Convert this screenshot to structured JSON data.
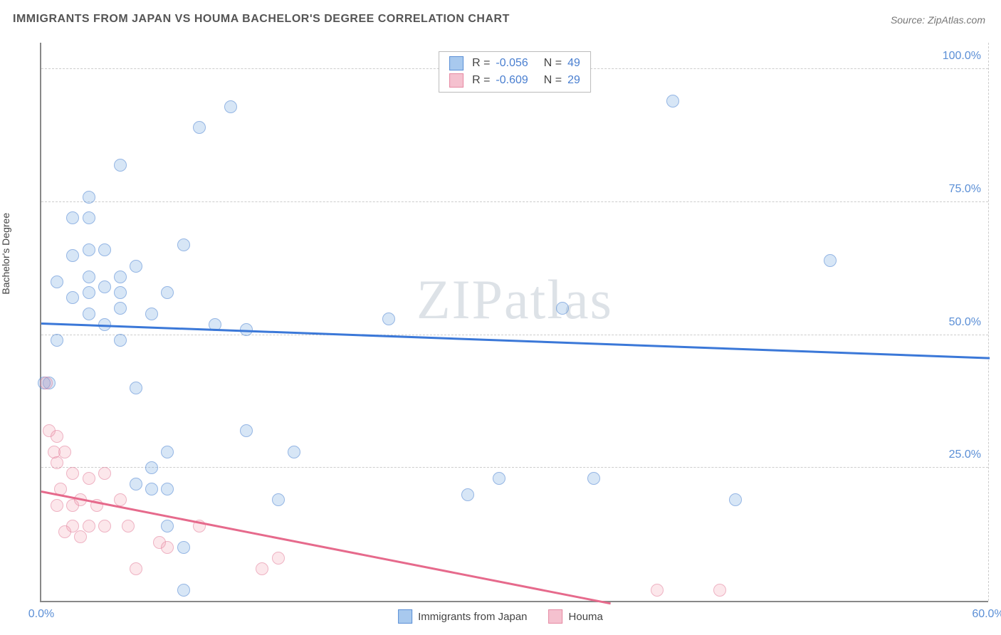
{
  "title": "IMMIGRANTS FROM JAPAN VS HOUMA BACHELOR'S DEGREE CORRELATION CHART",
  "source": "Source: ZipAtlas.com",
  "y_axis_label": "Bachelor's Degree",
  "watermark": "ZIPatlas",
  "chart": {
    "type": "scatter",
    "xlim": [
      0,
      60
    ],
    "ylim": [
      0,
      105
    ],
    "x_ticks": [
      {
        "v": 0,
        "l": "0.0%"
      },
      {
        "v": 60,
        "l": "60.0%"
      }
    ],
    "y_ticks": [
      {
        "v": 25,
        "l": "25.0%"
      },
      {
        "v": 50,
        "l": "50.0%"
      },
      {
        "v": 75,
        "l": "75.0%"
      },
      {
        "v": 100,
        "l": "100.0%"
      }
    ],
    "background_color": "#ffffff",
    "grid_color": "#cccccc"
  },
  "series": [
    {
      "name": "Immigrants from Japan",
      "color_fill": "#a8c9ee",
      "color_stroke": "#5b8fd6",
      "cls": "blue",
      "R": "-0.056",
      "N": "49",
      "trend": {
        "x1": 0,
        "y1": 52.5,
        "x2": 60,
        "y2": 46,
        "color": "#3b78d8"
      },
      "points": [
        {
          "x": 2,
          "y": 72
        },
        {
          "x": 3,
          "y": 72
        },
        {
          "x": 3,
          "y": 76
        },
        {
          "x": 5,
          "y": 82
        },
        {
          "x": 2,
          "y": 65
        },
        {
          "x": 3,
          "y": 66
        },
        {
          "x": 4,
          "y": 66
        },
        {
          "x": 5,
          "y": 61
        },
        {
          "x": 6,
          "y": 63
        },
        {
          "x": 3,
          "y": 58
        },
        {
          "x": 4,
          "y": 59
        },
        {
          "x": 5,
          "y": 58
        },
        {
          "x": 1,
          "y": 60
        },
        {
          "x": 2,
          "y": 57
        },
        {
          "x": 3,
          "y": 54
        },
        {
          "x": 5,
          "y": 55
        },
        {
          "x": 4,
          "y": 52
        },
        {
          "x": 1,
          "y": 49
        },
        {
          "x": 7,
          "y": 54
        },
        {
          "x": 8,
          "y": 58
        },
        {
          "x": 6,
          "y": 40
        },
        {
          "x": 0.5,
          "y": 41
        },
        {
          "x": 0.2,
          "y": 41
        },
        {
          "x": 9,
          "y": 67
        },
        {
          "x": 10,
          "y": 89
        },
        {
          "x": 12,
          "y": 93
        },
        {
          "x": 11,
          "y": 52
        },
        {
          "x": 13,
          "y": 51
        },
        {
          "x": 8,
          "y": 28
        },
        {
          "x": 7,
          "y": 25
        },
        {
          "x": 7,
          "y": 21
        },
        {
          "x": 8,
          "y": 21
        },
        {
          "x": 6,
          "y": 22
        },
        {
          "x": 8,
          "y": 14
        },
        {
          "x": 9,
          "y": 10
        },
        {
          "x": 9,
          "y": 2
        },
        {
          "x": 13,
          "y": 32
        },
        {
          "x": 15,
          "y": 19
        },
        {
          "x": 16,
          "y": 28
        },
        {
          "x": 22,
          "y": 53
        },
        {
          "x": 27,
          "y": 20
        },
        {
          "x": 29,
          "y": 23
        },
        {
          "x": 33,
          "y": 55
        },
        {
          "x": 35,
          "y": 23
        },
        {
          "x": 40,
          "y": 94
        },
        {
          "x": 44,
          "y": 19
        },
        {
          "x": 50,
          "y": 64
        },
        {
          "x": 5,
          "y": 49
        },
        {
          "x": 3,
          "y": 61
        }
      ]
    },
    {
      "name": "Houma",
      "color_fill": "#f5c1cf",
      "color_stroke": "#e68aa3",
      "cls": "pink",
      "R": "-0.609",
      "N": "29",
      "trend": {
        "x1": 0,
        "y1": 21,
        "x2": 36,
        "y2": 0,
        "color": "#e66a8c"
      },
      "points": [
        {
          "x": 0.3,
          "y": 41
        },
        {
          "x": 0.5,
          "y": 32
        },
        {
          "x": 1,
          "y": 31
        },
        {
          "x": 0.8,
          "y": 28
        },
        {
          "x": 1,
          "y": 26
        },
        {
          "x": 1.5,
          "y": 28
        },
        {
          "x": 2,
          "y": 24
        },
        {
          "x": 1.2,
          "y": 21
        },
        {
          "x": 2,
          "y": 18
        },
        {
          "x": 1,
          "y": 18
        },
        {
          "x": 2.5,
          "y": 19
        },
        {
          "x": 3,
          "y": 23
        },
        {
          "x": 3.5,
          "y": 18
        },
        {
          "x": 4,
          "y": 24
        },
        {
          "x": 3,
          "y": 14
        },
        {
          "x": 2,
          "y": 14
        },
        {
          "x": 4,
          "y": 14
        },
        {
          "x": 1.5,
          "y": 13
        },
        {
          "x": 2.5,
          "y": 12
        },
        {
          "x": 5,
          "y": 19
        },
        {
          "x": 5.5,
          "y": 14
        },
        {
          "x": 6,
          "y": 6
        },
        {
          "x": 7.5,
          "y": 11
        },
        {
          "x": 8,
          "y": 10
        },
        {
          "x": 10,
          "y": 14
        },
        {
          "x": 14,
          "y": 6
        },
        {
          "x": 15,
          "y": 8
        },
        {
          "x": 39,
          "y": 2
        },
        {
          "x": 43,
          "y": 2
        }
      ]
    }
  ],
  "legend_bottom": [
    {
      "label": "Immigrants from Japan",
      "fill": "#a8c9ee",
      "stroke": "#5b8fd6"
    },
    {
      "label": "Houma",
      "fill": "#f5c1cf",
      "stroke": "#e68aa3"
    }
  ]
}
